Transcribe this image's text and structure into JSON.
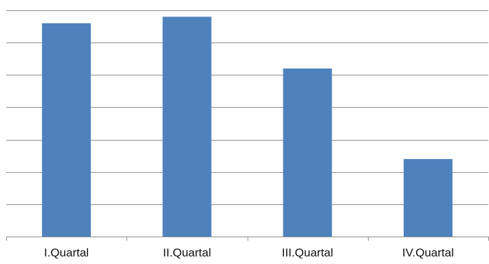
{
  "chart_data": {
    "type": "bar",
    "categories": [
      "I.Quartal",
      "II.Quartal",
      "III.Quartal",
      "IV.Quartal"
    ],
    "values": [
      6.6,
      6.8,
      5.2,
      2.4
    ],
    "ylim": [
      0,
      7
    ],
    "grid": true,
    "y_tick_labels_visible": false,
    "legend": "none",
    "colors": {
      "bar": "#4f81bd",
      "grid": "#8c8c8c",
      "axis": "#8c8c8c"
    }
  }
}
